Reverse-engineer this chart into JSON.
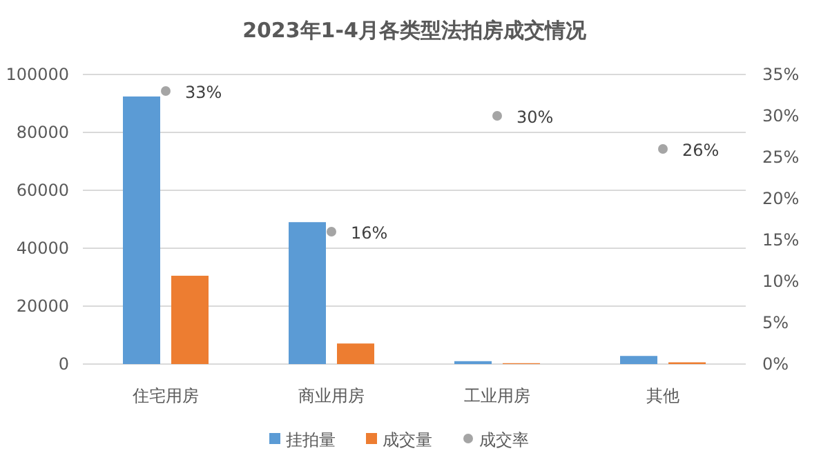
{
  "chart_data": {
    "type": "bar",
    "title": "2023年1-4月各类型法拍房成交情况",
    "categories": [
      "住宅用房",
      "商业用房",
      "工业用房",
      "其他"
    ],
    "series": [
      {
        "name": "挂拍量",
        "color": "#5b9bd5",
        "values": [
          92400,
          49000,
          1000,
          2800
        ]
      },
      {
        "name": "成交量",
        "color": "#ed7d31",
        "values": [
          30500,
          7100,
          300,
          600
        ]
      },
      {
        "name": "成交率",
        "type": "scatter",
        "axis": "y2",
        "marker": "circle",
        "color": "#a5a5a5",
        "values": [
          33,
          16,
          30,
          26
        ],
        "value_labels": [
          "33%",
          "16%",
          "30%",
          "26%"
        ]
      }
    ],
    "ylim": [
      0,
      100000
    ],
    "yticks": [
      0,
      20000,
      40000,
      60000,
      80000,
      100000
    ],
    "y2lim": [
      0,
      35
    ],
    "y2ticks": [
      {
        "value": 0,
        "label": "0%"
      },
      {
        "value": 5,
        "label": "5%"
      },
      {
        "value": 10,
        "label": "10%"
      },
      {
        "value": 15,
        "label": "15%"
      },
      {
        "value": 20,
        "label": "20%"
      },
      {
        "value": 25,
        "label": "25%"
      },
      {
        "value": 30,
        "label": "30%"
      },
      {
        "value": 35,
        "label": "35%"
      }
    ],
    "grid": "y",
    "legend": "bottom"
  }
}
